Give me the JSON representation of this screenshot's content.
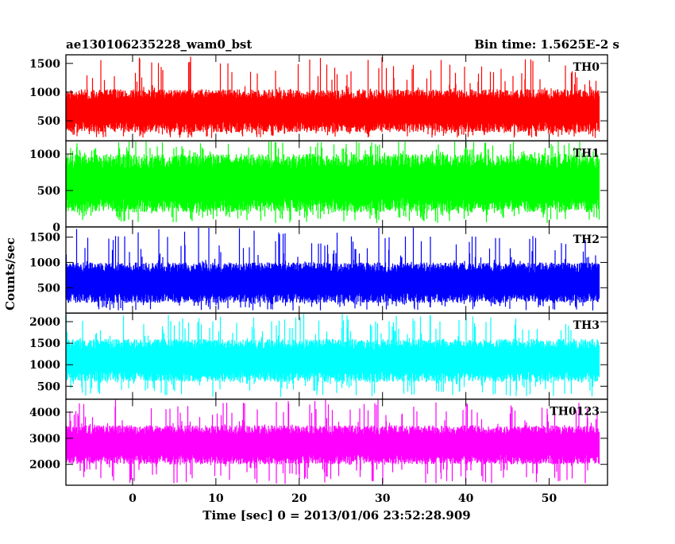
{
  "header": {
    "left_title": "ae130106235228_wam0_bst",
    "right_title": "Bin time: 1.5625E-2 s"
  },
  "chart_data": {
    "type": "line",
    "title": "ae130106235228_wam0_bst",
    "subtitle": "Bin time: 1.5625E-2 s",
    "xlabel": "Time [sec] 0 = 2013/01/06 23:52:28.909",
    "ylabel": "Counts/sec",
    "xlim": [
      -8,
      57
    ],
    "x_ticks": [
      0,
      10,
      20,
      30,
      40,
      50
    ],
    "x_tick_labels": [
      "0",
      "10",
      "20",
      "30",
      "40",
      "50"
    ],
    "x_data_range": [
      -8,
      56
    ],
    "bin_time": 0.015625,
    "grid": false,
    "legend": "none",
    "panels": [
      {
        "name": "TH0",
        "color": "#ff0000",
        "ylim": [
          150,
          1650
        ],
        "y_ticks": [
          500,
          1000,
          1500
        ],
        "y_tick_labels": [
          "500",
          "1000",
          "1500"
        ],
        "approx_range": [
          200,
          1650
        ],
        "approx_band": [
          300,
          1050
        ],
        "approx_mean": 700
      },
      {
        "name": "TH1",
        "color": "#00ff00",
        "ylim": [
          0,
          1180
        ],
        "y_ticks": [
          0,
          500,
          1000
        ],
        "y_tick_labels": [
          "0",
          "500",
          "1000"
        ],
        "approx_range": [
          50,
          1180
        ],
        "approx_band": [
          200,
          1000
        ],
        "approx_mean": 600
      },
      {
        "name": "TH2",
        "color": "#0000ff",
        "ylim": [
          0,
          1700
        ],
        "y_ticks": [
          500,
          1000,
          1500
        ],
        "y_tick_labels": [
          "500",
          "1000",
          "1500"
        ],
        "approx_range": [
          50,
          1700
        ],
        "approx_band": [
          200,
          1000
        ],
        "approx_mean": 600
      },
      {
        "name": "TH3",
        "color": "#00ffff",
        "ylim": [
          200,
          2200
        ],
        "y_ticks": [
          500,
          1000,
          1500,
          2000
        ],
        "y_tick_labels": [
          "500",
          "1000",
          "1500",
          "2000"
        ],
        "approx_range": [
          250,
          2200
        ],
        "approx_band": [
          600,
          1600
        ],
        "approx_mean": 1100
      },
      {
        "name": "TH0123",
        "color": "#ff00ff",
        "ylim": [
          1200,
          4500
        ],
        "y_ticks": [
          2000,
          3000,
          4000
        ],
        "y_tick_labels": [
          "2000",
          "3000",
          "4000"
        ],
        "approx_range": [
          1250,
          4500
        ],
        "approx_band": [
          2000,
          3500
        ],
        "approx_mean": 2700
      }
    ]
  }
}
